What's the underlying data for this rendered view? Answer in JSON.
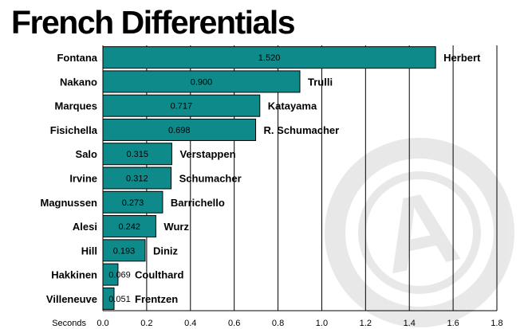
{
  "chart_data": {
    "type": "bar",
    "orientation": "horizontal",
    "title": "French Differentials",
    "xlabel": "Seconds",
    "xlim": [
      0,
      1.8
    ],
    "xticks": [
      "0.0",
      "0.2",
      "0.4",
      "0.6",
      "0.8",
      "1.0",
      "1.2",
      "1.4",
      "1.6",
      "1.8"
    ],
    "grid": "vertical",
    "bar_color": "#0E8A8A",
    "categories": [
      "Fontana",
      "Nakano",
      "Marques",
      "Fisichella",
      "Salo",
      "Irvine",
      "Magnussen",
      "Alesi",
      "Hill",
      "Hakkinen",
      "Villeneuve"
    ],
    "bar_labels": [
      "Herbert",
      "Trulli",
      "Katayama",
      "R. Schumacher",
      "Verstappen",
      "Schumacher",
      "Barrichello",
      "Wurz",
      "Diniz",
      "Coulthard",
      "Frentzen"
    ],
    "values": [
      1.52,
      0.9,
      0.717,
      0.698,
      0.315,
      0.312,
      0.273,
      0.242,
      0.193,
      0.069,
      0.051
    ],
    "value_labels": [
      "1.520",
      "0.900",
      "0.717",
      "0.698",
      "0.315",
      "0.312",
      "0.273",
      "0.242",
      "0.193",
      "0.069",
      "0.051"
    ]
  },
  "watermark": {
    "letter": "A"
  }
}
